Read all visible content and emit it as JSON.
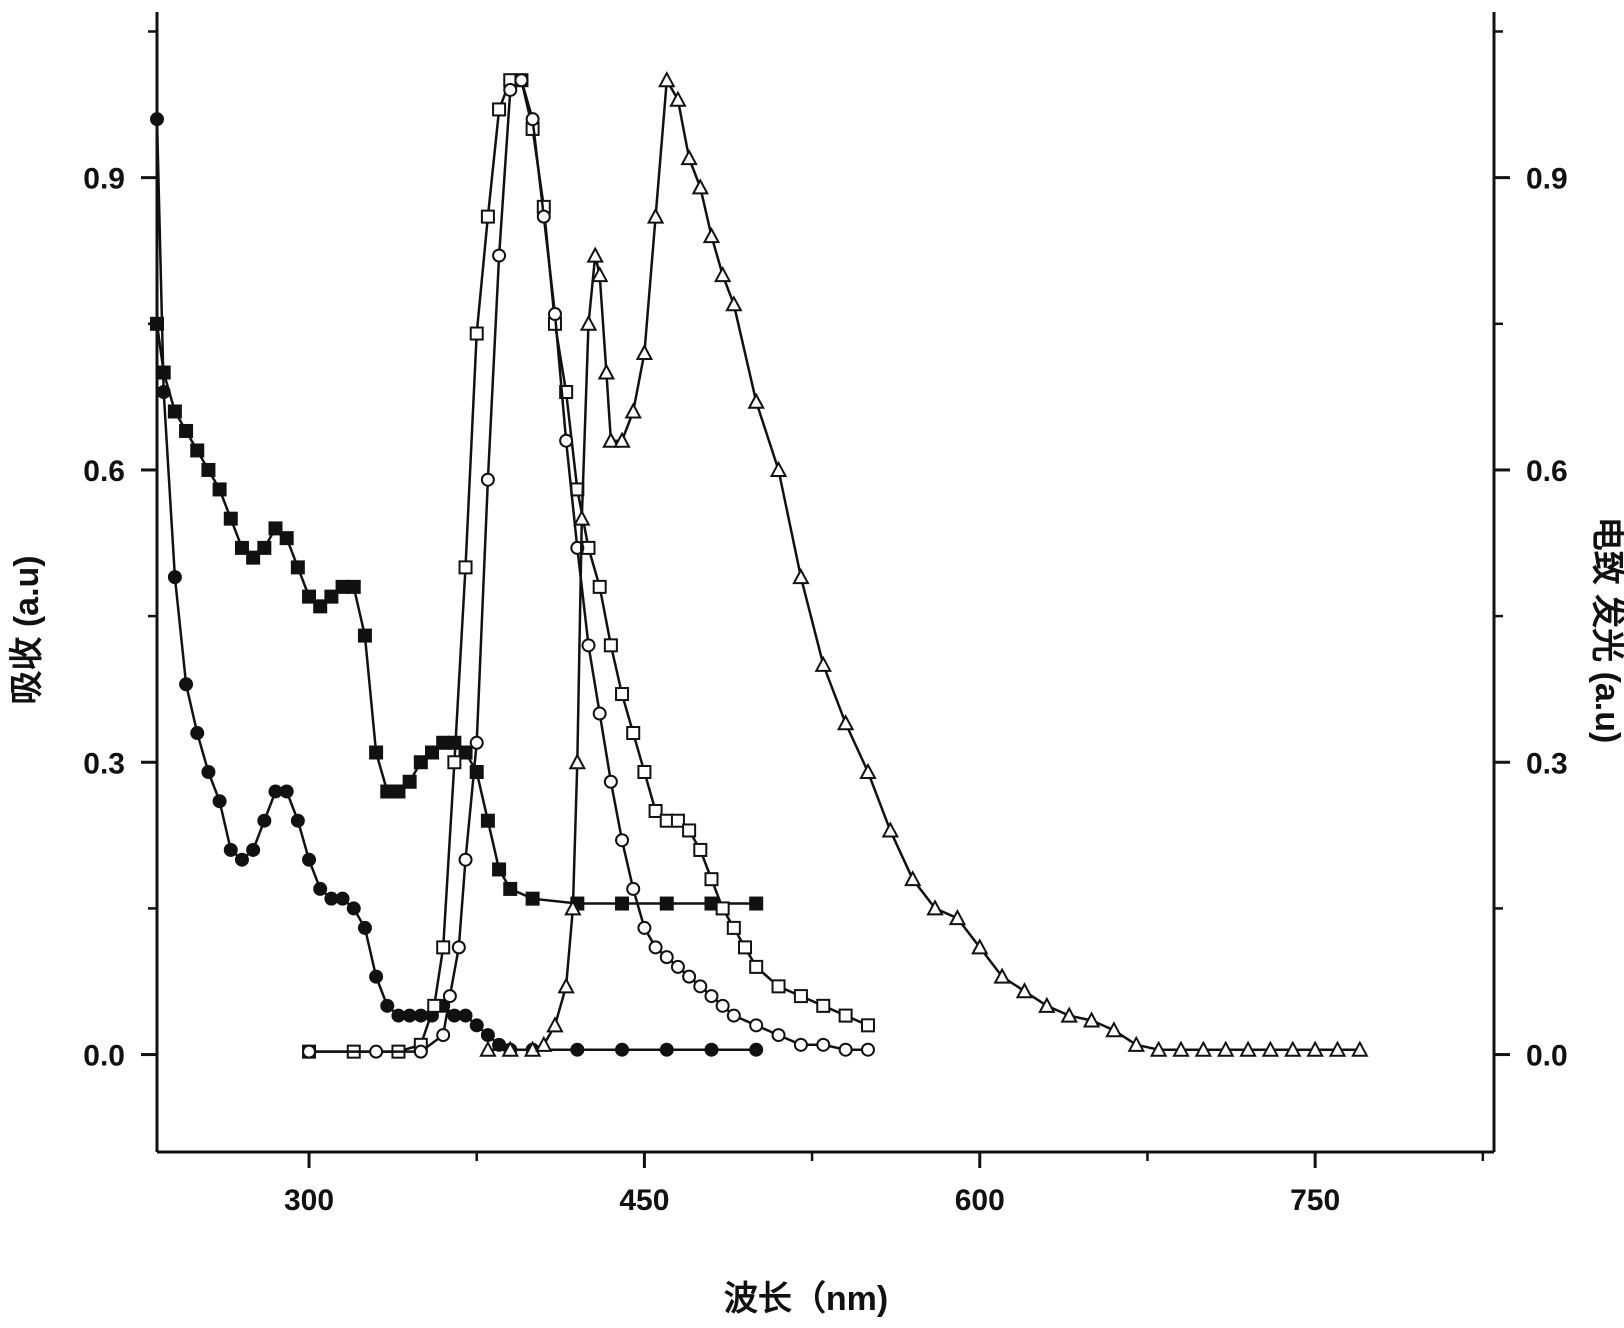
{
  "chart_data": {
    "type": "line",
    "title": "",
    "xlabel": "波长（nm)",
    "ylabel_left": "吸收  (a.u)",
    "ylabel_right": "电致 发光 (a.u)",
    "xlim": [
      232,
      830
    ],
    "ylim": [
      -0.1,
      1.07
    ],
    "x_ticks": [
      300,
      450,
      600,
      750
    ],
    "x_tick_labels": [
      "300",
      "450",
      "600",
      "750"
    ],
    "y_ticks": [
      0.0,
      0.3,
      0.6,
      0.9
    ],
    "y_tick_labels_left": [
      "0.0",
      "0.3",
      "0.6",
      "0.9"
    ],
    "y_tick_labels_right": [
      "0.0",
      "0.3",
      "0.6",
      "0.9"
    ],
    "grid": false,
    "legend": "none",
    "series": [
      {
        "marker": "filled-square",
        "color": "#111111",
        "x": [
          232,
          235,
          240,
          245,
          250,
          255,
          260,
          265,
          270,
          275,
          280,
          285,
          290,
          295,
          300,
          305,
          310,
          315,
          320,
          325,
          330,
          335,
          340,
          345,
          350,
          355,
          360,
          365,
          370,
          375,
          380,
          385,
          390,
          400,
          420,
          440,
          460,
          480,
          500
        ],
        "y": [
          0.75,
          0.7,
          0.66,
          0.64,
          0.62,
          0.6,
          0.58,
          0.55,
          0.52,
          0.51,
          0.52,
          0.54,
          0.53,
          0.5,
          0.47,
          0.46,
          0.47,
          0.48,
          0.48,
          0.43,
          0.31,
          0.27,
          0.27,
          0.28,
          0.3,
          0.31,
          0.32,
          0.32,
          0.31,
          0.29,
          0.24,
          0.19,
          0.17,
          0.16,
          0.155,
          0.155,
          0.155,
          0.155,
          0.155
        ]
      },
      {
        "marker": "filled-circle",
        "color": "#111111",
        "x": [
          232,
          235,
          240,
          245,
          250,
          255,
          260,
          265,
          270,
          275,
          280,
          285,
          290,
          295,
          300,
          305,
          310,
          315,
          320,
          325,
          330,
          335,
          340,
          345,
          350,
          355,
          360,
          365,
          370,
          375,
          380,
          385,
          390,
          400,
          420,
          440,
          460,
          480,
          500
        ],
        "y": [
          0.96,
          0.68,
          0.49,
          0.38,
          0.33,
          0.29,
          0.26,
          0.21,
          0.2,
          0.21,
          0.24,
          0.27,
          0.27,
          0.24,
          0.2,
          0.17,
          0.16,
          0.16,
          0.15,
          0.13,
          0.08,
          0.05,
          0.04,
          0.04,
          0.04,
          0.04,
          0.05,
          0.04,
          0.04,
          0.03,
          0.02,
          0.01,
          0.005,
          0.005,
          0.005,
          0.005,
          0.005,
          0.005,
          0.005
        ]
      },
      {
        "marker": "open-square",
        "color": "#111111",
        "x": [
          300,
          320,
          340,
          350,
          356,
          360,
          365,
          370,
          375,
          380,
          385,
          390,
          395,
          400,
          405,
          410,
          415,
          420,
          425,
          430,
          435,
          440,
          445,
          450,
          455,
          460,
          465,
          470,
          475,
          480,
          485,
          490,
          495,
          500,
          510,
          520,
          530,
          540,
          550
        ],
        "y": [
          0.003,
          0.003,
          0.003,
          0.01,
          0.05,
          0.11,
          0.3,
          0.5,
          0.74,
          0.86,
          0.97,
          1.0,
          1.0,
          0.95,
          0.87,
          0.75,
          0.68,
          0.58,
          0.52,
          0.48,
          0.42,
          0.37,
          0.33,
          0.29,
          0.25,
          0.24,
          0.24,
          0.23,
          0.21,
          0.18,
          0.15,
          0.13,
          0.11,
          0.09,
          0.07,
          0.06,
          0.05,
          0.04,
          0.03
        ]
      },
      {
        "marker": "open-circle",
        "color": "#111111",
        "x": [
          300,
          330,
          350,
          360,
          363,
          367,
          370,
          375,
          380,
          385,
          390,
          395,
          400,
          405,
          410,
          415,
          420,
          425,
          430,
          435,
          440,
          445,
          450,
          455,
          460,
          465,
          470,
          475,
          480,
          485,
          490,
          500,
          510,
          520,
          530,
          540,
          550
        ],
        "y": [
          0.003,
          0.003,
          0.003,
          0.02,
          0.06,
          0.11,
          0.2,
          0.32,
          0.59,
          0.82,
          0.99,
          1.0,
          0.96,
          0.86,
          0.76,
          0.63,
          0.52,
          0.42,
          0.35,
          0.28,
          0.22,
          0.17,
          0.13,
          0.11,
          0.1,
          0.09,
          0.08,
          0.07,
          0.06,
          0.05,
          0.04,
          0.03,
          0.02,
          0.01,
          0.01,
          0.005,
          0.005
        ]
      },
      {
        "marker": "open-triangle",
        "color": "#111111",
        "x": [
          380,
          390,
          400,
          405,
          410,
          415,
          418,
          420,
          422,
          425,
          428,
          430,
          433,
          435,
          440,
          445,
          450,
          455,
          460,
          465,
          470,
          475,
          480,
          485,
          490,
          500,
          510,
          520,
          530,
          540,
          550,
          560,
          570,
          580,
          590,
          600,
          610,
          620,
          630,
          640,
          650,
          660,
          670,
          680,
          690,
          700,
          710,
          720,
          730,
          740,
          750,
          760,
          770
        ],
        "y": [
          0.005,
          0.005,
          0.005,
          0.01,
          0.03,
          0.07,
          0.15,
          0.3,
          0.55,
          0.75,
          0.82,
          0.8,
          0.7,
          0.63,
          0.63,
          0.66,
          0.72,
          0.86,
          1.0,
          0.98,
          0.92,
          0.89,
          0.84,
          0.8,
          0.77,
          0.67,
          0.6,
          0.49,
          0.4,
          0.34,
          0.29,
          0.23,
          0.18,
          0.15,
          0.14,
          0.11,
          0.08,
          0.065,
          0.05,
          0.04,
          0.035,
          0.025,
          0.01,
          0.005,
          0.005,
          0.005,
          0.005,
          0.005,
          0.005,
          0.005,
          0.005,
          0.005,
          0.005
        ]
      }
    ]
  }
}
